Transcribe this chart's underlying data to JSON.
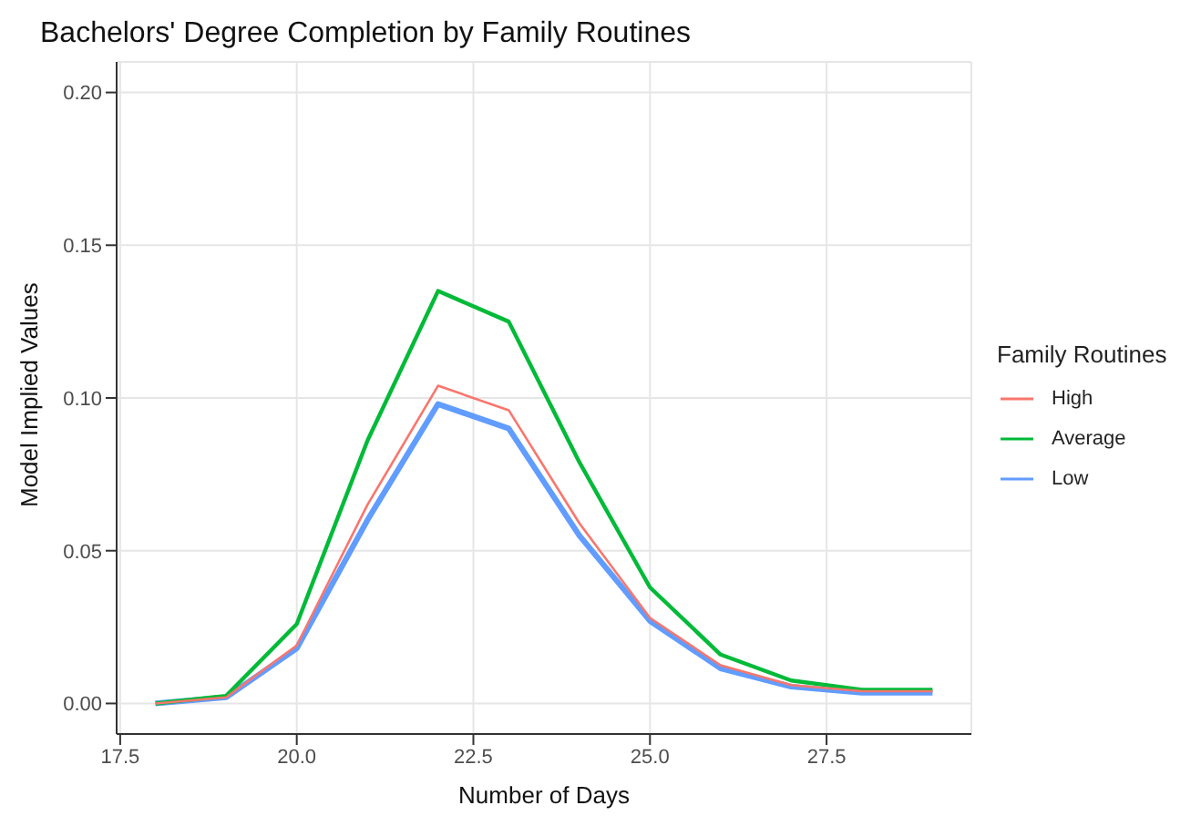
{
  "chart_data": {
    "type": "line",
    "title": "Bachelors' Degree Completion by Family Routines",
    "xlabel": "Number of Days",
    "ylabel": "Model Implied Values",
    "legend_title": "Family Routines",
    "x": [
      18,
      19,
      20,
      21,
      22,
      23,
      24,
      25,
      26,
      27,
      28,
      29
    ],
    "series": [
      {
        "name": "High",
        "color": "#f8766d",
        "values": [
          0,
          0.002,
          0.019,
          0.065,
          0.104,
          0.096,
          0.059,
          0.028,
          0.0125,
          0.006,
          0.004,
          0.004
        ]
      },
      {
        "name": "Average",
        "color": "#00ba38",
        "values": [
          0,
          0.0025,
          0.026,
          0.086,
          0.135,
          0.125,
          0.079,
          0.038,
          0.016,
          0.0075,
          0.0045,
          0.0045
        ]
      },
      {
        "name": "Low",
        "color": "#619cff",
        "values": [
          0,
          0.002,
          0.018,
          0.06,
          0.098,
          0.09,
          0.055,
          0.027,
          0.0115,
          0.0055,
          0.0035,
          0.0035
        ]
      }
    ],
    "xlim": [
      17.45,
      29.55
    ],
    "xticks": [
      {
        "value": 17.5,
        "label": "17.5"
      },
      {
        "value": 20,
        "label": "20.0"
      },
      {
        "value": 22.5,
        "label": "22.5"
      },
      {
        "value": 25,
        "label": "25.0"
      },
      {
        "value": 27.5,
        "label": "27.5"
      }
    ],
    "ylim": [
      -0.01,
      0.21
    ],
    "yticks": [
      {
        "value": 0,
        "label": "0.00"
      },
      {
        "value": 0.05,
        "label": "0.05"
      },
      {
        "value": 0.1,
        "label": "0.10"
      },
      {
        "value": 0.15,
        "label": "0.15"
      },
      {
        "value": 0.2,
        "label": "0.20"
      }
    ],
    "grid": true,
    "legend": "right",
    "marker": "none",
    "line_style": "solid"
  }
}
